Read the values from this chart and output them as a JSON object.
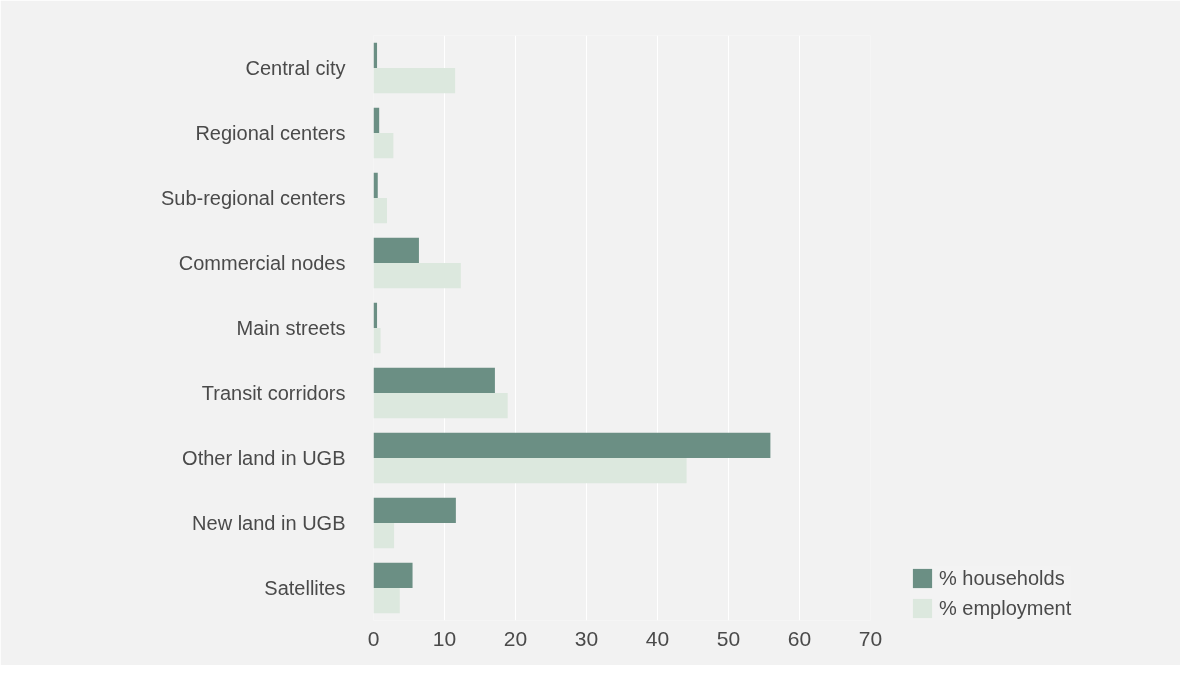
{
  "chart_data": {
    "type": "bar",
    "orientation": "horizontal",
    "categories": [
      "Central city",
      "Regional centers",
      "Sub-regional centers",
      "Commercial nodes",
      "Main streets",
      "Transit corridors",
      "Other land in UGB",
      "New land in UGB",
      "Satellites"
    ],
    "series": [
      {
        "name": "% households",
        "color": "#6b8f84",
        "values": [
          0.5,
          0.8,
          0.6,
          6.4,
          0.5,
          17.1,
          55.9,
          11.6,
          5.5
        ]
      },
      {
        "name": "% employment",
        "color": "#dce8de",
        "values": [
          11.5,
          2.8,
          1.9,
          12.3,
          1.0,
          18.9,
          44.1,
          2.9,
          3.7
        ]
      }
    ],
    "xlim": [
      0,
      70
    ],
    "xticks": [
      0,
      10,
      20,
      30,
      40,
      50,
      60,
      70
    ],
    "grid": "x",
    "legend": "bottom right"
  }
}
